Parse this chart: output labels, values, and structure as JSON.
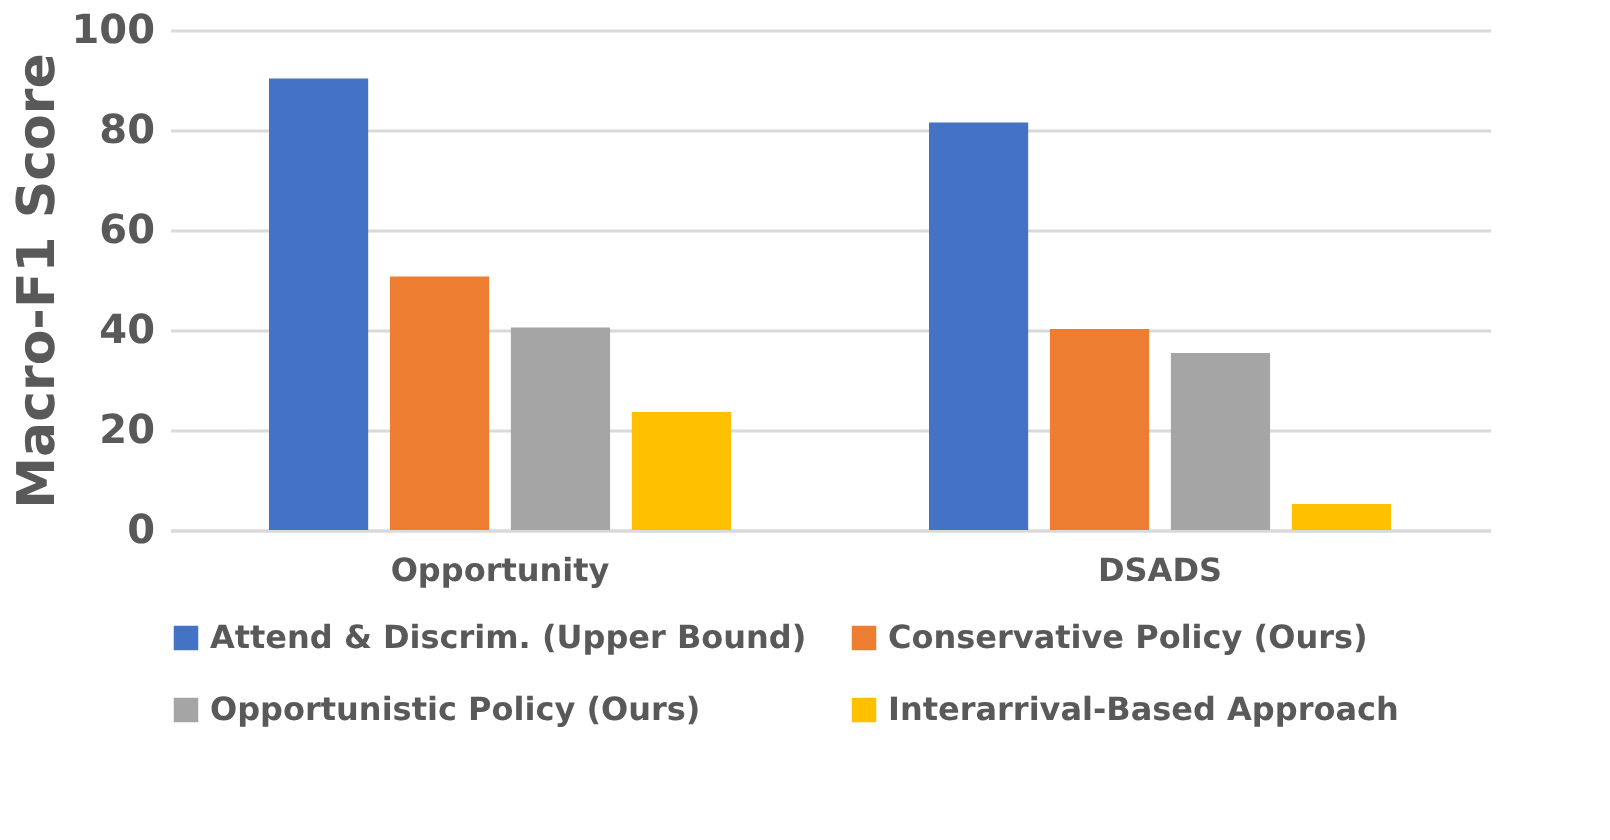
{
  "chart_data": {
    "type": "bar",
    "ylabel": "Macro-F1 Score",
    "categories": [
      "Opportunity",
      "DSADS"
    ],
    "series": [
      {
        "name": "Attend & Discrim. (Upper Bound)",
        "color": "#4472c4",
        "values": [
          90.3,
          81.5
        ]
      },
      {
        "name": "Conservative Policy (Ours)",
        "color": "#ed7d31",
        "values": [
          50.7,
          40.2
        ]
      },
      {
        "name": "Opportunistic Policy (Ours)",
        "color": "#a5a5a5",
        "values": [
          40.5,
          35.4
        ]
      },
      {
        "name": "Interarrival-Based Approach",
        "color": "#ffc000",
        "values": [
          23.6,
          5.2
        ]
      }
    ],
    "ylim": [
      0,
      100
    ],
    "yticks": [
      0,
      20,
      40,
      60,
      80,
      100
    ],
    "grid": "y",
    "legend": "bottom"
  }
}
